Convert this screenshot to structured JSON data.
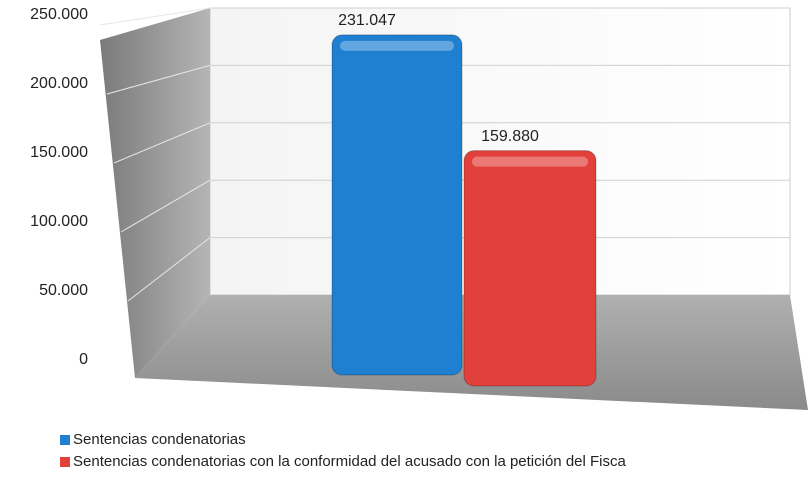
{
  "chart_data": {
    "type": "bar",
    "categories": [
      null
    ],
    "series": [
      {
        "name": "Sentencias condenatorias",
        "color": "#1f7fd1",
        "values": [
          231047
        ],
        "value_labels": [
          "231.047"
        ]
      },
      {
        "name": "Sentencias condenatorias con la conformidad del acusado con la petición del Fisca",
        "color": "#e2403a",
        "values": [
          159880
        ],
        "value_labels": [
          "159.880"
        ]
      }
    ],
    "ylim": [
      0,
      250000
    ],
    "yticks": [
      0,
      {
        "value": 50000,
        "label": "50.000"
      },
      {
        "value": 100000,
        "label": "100.000"
      },
      {
        "value": 150000,
        "label": "150.000"
      },
      {
        "value": 200000,
        "label": "200.000"
      },
      {
        "value": 250000,
        "label": "250.000"
      }
    ],
    "grid": true
  }
}
